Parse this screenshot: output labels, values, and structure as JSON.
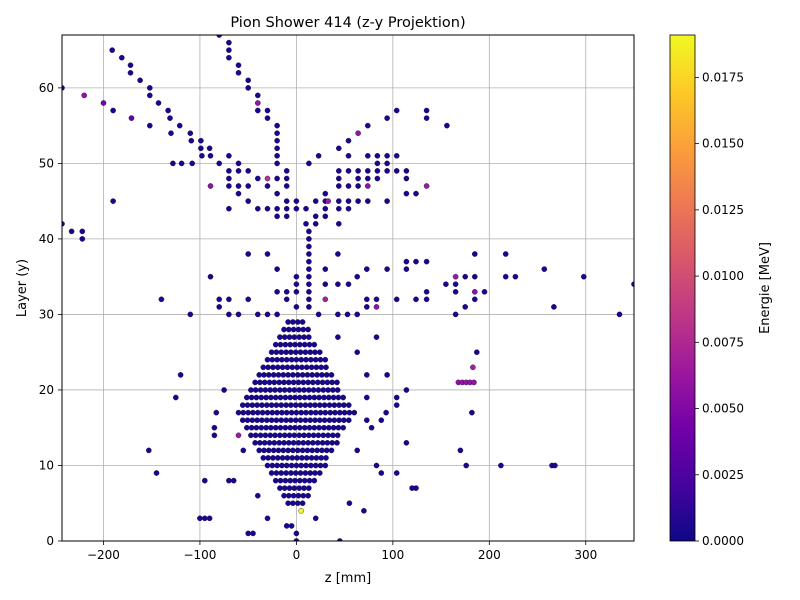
{
  "chart_data": {
    "type": "scatter",
    "title": "Pion Shower 414 (z-y Projektion)",
    "xlabel": "z [mm]",
    "ylabel": "Layer (y)",
    "xlim": [
      -243,
      350
    ],
    "ylim": [
      0,
      67
    ],
    "xticks": [
      -200,
      -100,
      0,
      100,
      200,
      300
    ],
    "yticks": [
      0,
      10,
      20,
      30,
      40,
      50,
      60
    ],
    "grid": true,
    "colorbar": {
      "label": "Energie [MeV]",
      "range": [
        0,
        0.0191
      ],
      "ticks": [
        "0.0000",
        "0.0025",
        "0.0050",
        "0.0075",
        "0.0100",
        "0.0125",
        "0.0150",
        "0.0175"
      ],
      "colormap": "plasma",
      "stops": [
        "#0d0887",
        "#46039f",
        "#7201a8",
        "#9c179e",
        "#bd3786",
        "#d8576b",
        "#ed7953",
        "#fb9f3a",
        "#fdca26",
        "#f0f921"
      ]
    },
    "points": [
      [
        -243,
        60,
        0.0005
      ],
      [
        -243,
        42,
        0.0004
      ],
      [
        -233,
        41,
        0.0004
      ],
      [
        -222,
        41,
        0.0004
      ],
      [
        -222,
        40,
        0.0004
      ],
      [
        -220,
        59,
        0.006
      ],
      [
        -200,
        58,
        0.0045
      ],
      [
        -191,
        65,
        0.0004
      ],
      [
        -190,
        57,
        0.0004
      ],
      [
        -190,
        45,
        0.0004
      ],
      [
        -181,
        64,
        0.0004
      ],
      [
        -172,
        63,
        0.0004
      ],
      [
        -172,
        62,
        0.0004
      ],
      [
        -171,
        56,
        0.0035
      ],
      [
        -162,
        61,
        0.0004
      ],
      [
        -152,
        60,
        0.0004
      ],
      [
        -152,
        59,
        0.0004
      ],
      [
        -152,
        55,
        0.0004
      ],
      [
        -143,
        58,
        0.0004
      ],
      [
        -140,
        32,
        0.0004
      ],
      [
        -133,
        57,
        0.0004
      ],
      [
        -131,
        56,
        0.0004
      ],
      [
        -130,
        54,
        0.0004
      ],
      [
        -128,
        50,
        0.0004
      ],
      [
        -121,
        55,
        0.0004
      ],
      [
        -119,
        50,
        0.0004
      ],
      [
        -110,
        54,
        0.0004
      ],
      [
        -109,
        53,
        0.0004
      ],
      [
        -108,
        50,
        0.0004
      ],
      [
        -99,
        53,
        0.0004
      ],
      [
        -99,
        52,
        0.0004
      ],
      [
        -98,
        51,
        0.0007
      ],
      [
        -90,
        52,
        0.0004
      ],
      [
        -89,
        51,
        0.0004
      ],
      [
        -89,
        47,
        0.0058
      ],
      [
        -89,
        35,
        0.0004
      ],
      [
        -80,
        50,
        0.0004
      ],
      [
        -80,
        67,
        0.0004
      ],
      [
        -70,
        49,
        0.0004
      ],
      [
        -70,
        48,
        0.0004
      ],
      [
        -70,
        47,
        0.0004
      ],
      [
        -70,
        44,
        0.0004
      ],
      [
        -70,
        51,
        0.0004
      ],
      [
        -60,
        49,
        0.0004
      ],
      [
        -60,
        47,
        0.0004
      ],
      [
        -60,
        46,
        0.0004
      ],
      [
        -60,
        50,
        0.0004
      ],
      [
        -50,
        49,
        0.0004
      ],
      [
        -50,
        47,
        0.0004
      ],
      [
        -50,
        45,
        0.0004
      ],
      [
        -40,
        48,
        0.0004
      ],
      [
        -40,
        44,
        0.0004
      ],
      [
        -30,
        48,
        0.0085
      ],
      [
        -30,
        47,
        0.0004
      ],
      [
        -20,
        48,
        0.0004
      ],
      [
        -20,
        46,
        0.0004
      ],
      [
        -20,
        44,
        0.0004
      ],
      [
        -20,
        43,
        0.0004
      ],
      [
        -30,
        44,
        0.0004
      ],
      [
        -70,
        66,
        0.0004
      ],
      [
        -70,
        65,
        0.0004
      ],
      [
        -70,
        64,
        0.0004
      ],
      [
        -60,
        63,
        0.0004
      ],
      [
        -60,
        62,
        0.0004
      ],
      [
        -50,
        61,
        0.0004
      ],
      [
        -50,
        60,
        0.0004
      ],
      [
        -40,
        59,
        0.0004
      ],
      [
        -40,
        58,
        0.006
      ],
      [
        -40,
        57,
        0.0004
      ],
      [
        -30,
        57,
        0.0004
      ],
      [
        -30,
        56,
        0.0004
      ],
      [
        -20,
        55,
        0.0004
      ],
      [
        -20,
        54,
        0.0004
      ],
      [
        -20,
        53,
        0.0004
      ],
      [
        -20,
        52,
        0.0004
      ],
      [
        -20,
        51,
        0.0004
      ],
      [
        -20,
        50,
        0.0004
      ],
      [
        -10,
        49,
        0.0004
      ],
      [
        -10,
        48,
        0.0004
      ],
      [
        -10,
        47,
        0.0004
      ],
      [
        -10,
        45,
        0.0004
      ],
      [
        -10,
        44,
        0.0004
      ],
      [
        -10,
        43,
        0.0004
      ],
      [
        0,
        45,
        0.0004
      ],
      [
        0,
        44,
        0.0004
      ],
      [
        10,
        44,
        0.0004
      ],
      [
        10,
        42,
        0.0004
      ],
      [
        20,
        45,
        0.0004
      ],
      [
        20,
        43,
        0.0004
      ],
      [
        20,
        42,
        0.0004
      ],
      [
        30,
        45,
        0.0004
      ],
      [
        30,
        44,
        0.0004
      ],
      [
        30,
        43,
        0.0004
      ],
      [
        30,
        46,
        0.0004
      ],
      [
        33,
        45,
        0.0065
      ],
      [
        13,
        50,
        0.0004
      ],
      [
        23,
        51,
        0.0004
      ],
      [
        44,
        49,
        0.0004
      ],
      [
        44,
        48,
        0.0004
      ],
      [
        44,
        47,
        0.0004
      ],
      [
        44,
        45,
        0.0004
      ],
      [
        44,
        44,
        0.0004
      ],
      [
        44,
        42,
        0.0004
      ],
      [
        44,
        52,
        0.0004
      ],
      [
        54,
        53,
        0.0004
      ],
      [
        54,
        51,
        0.0004
      ],
      [
        54,
        49,
        0.0004
      ],
      [
        54,
        47,
        0.0004
      ],
      [
        54,
        45,
        0.0004
      ],
      [
        54,
        44,
        0.0004
      ],
      [
        64,
        54,
        0.006
      ],
      [
        64,
        49,
        0.0004
      ],
      [
        64,
        48,
        0.0004
      ],
      [
        64,
        47,
        0.0004
      ],
      [
        64,
        45,
        0.0004
      ],
      [
        74,
        55,
        0.0004
      ],
      [
        74,
        51,
        0.0004
      ],
      [
        74,
        49,
        0.0004
      ],
      [
        74,
        48,
        0.0004
      ],
      [
        74,
        47,
        0.006
      ],
      [
        74,
        45,
        0.0004
      ],
      [
        84,
        51,
        0.0004
      ],
      [
        84,
        50,
        0.0004
      ],
      [
        84,
        49,
        0.0004
      ],
      [
        84,
        48,
        0.0004
      ],
      [
        94,
        56,
        0.0004
      ],
      [
        94,
        51,
        0.0004
      ],
      [
        94,
        50,
        0.0004
      ],
      [
        94,
        49,
        0.0004
      ],
      [
        94,
        45,
        0.0004
      ],
      [
        104,
        57,
        0.0004
      ],
      [
        104,
        51,
        0.0004
      ],
      [
        104,
        49,
        0.0004
      ],
      [
        114,
        49,
        0.0004
      ],
      [
        114,
        48,
        0.0004
      ],
      [
        114,
        46,
        0.0004
      ],
      [
        124,
        46,
        0.0004
      ],
      [
        135,
        57,
        0.0004
      ],
      [
        135,
        56,
        0.0004
      ],
      [
        135,
        47,
        0.0065
      ],
      [
        156,
        55,
        0.0004
      ],
      [
        -30,
        38,
        0.0004
      ],
      [
        -50,
        38,
        0.0004
      ],
      [
        -20,
        36,
        0.0004
      ],
      [
        0,
        35,
        0.0004
      ],
      [
        0,
        34,
        0.0004
      ],
      [
        0,
        33,
        0.0004
      ],
      [
        0,
        31,
        0.0004
      ],
      [
        13,
        41,
        0.0004
      ],
      [
        13,
        40,
        0.0004
      ],
      [
        13,
        39,
        0.0004
      ],
      [
        13,
        38,
        0.0004
      ],
      [
        13,
        37,
        0.0004
      ],
      [
        13,
        36,
        0.0004
      ],
      [
        13,
        35,
        0.0004
      ],
      [
        13,
        34,
        0.0004
      ],
      [
        13,
        33,
        0.0004
      ],
      [
        13,
        32,
        0.0004
      ],
      [
        13,
        31,
        0.0004
      ],
      [
        -20,
        33,
        0.0004
      ],
      [
        -10,
        32,
        0.0004
      ],
      [
        -10,
        33,
        0.0004
      ],
      [
        30,
        36,
        0.0004
      ],
      [
        30,
        34,
        0.0004
      ],
      [
        30,
        32,
        0.007
      ],
      [
        23,
        30,
        0.0004
      ],
      [
        43,
        38,
        0.0004
      ],
      [
        43,
        34,
        0.0004
      ],
      [
        54,
        34,
        0.0004
      ],
      [
        63,
        35,
        0.0004
      ],
      [
        73,
        36,
        0.0004
      ],
      [
        73,
        32,
        0.0004
      ],
      [
        73,
        31,
        0.0004
      ],
      [
        83,
        32,
        0.0004
      ],
      [
        83,
        31,
        0.006
      ],
      [
        94,
        36,
        0.0004
      ],
      [
        104,
        32,
        0.0004
      ],
      [
        114,
        37,
        0.0004
      ],
      [
        114,
        36,
        0.0004
      ],
      [
        124,
        37,
        0.0004
      ],
      [
        124,
        32,
        0.0004
      ],
      [
        135,
        37,
        0.0004
      ],
      [
        135,
        33,
        0.0004
      ],
      [
        135,
        32,
        0.0004
      ],
      [
        155,
        34,
        0.0004
      ],
      [
        165,
        35,
        0.0065
      ],
      [
        165,
        34,
        0.0004
      ],
      [
        165,
        33,
        0.0004
      ],
      [
        165,
        30,
        0.0004
      ],
      [
        175,
        35,
        0.0004
      ],
      [
        175,
        31,
        0.0004
      ],
      [
        185,
        38,
        0.0004
      ],
      [
        185,
        35,
        0.0004
      ],
      [
        185,
        33,
        0.006
      ],
      [
        185,
        32,
        0.0004
      ],
      [
        195,
        33,
        0.0004
      ],
      [
        217,
        38,
        0.0004
      ],
      [
        217,
        35,
        0.0004
      ],
      [
        227,
        35,
        0.0004
      ],
      [
        257,
        36,
        0.0004
      ],
      [
        267,
        31,
        0.0004
      ],
      [
        298,
        35,
        0.0004
      ],
      [
        335,
        30,
        0.0004
      ],
      [
        350,
        34,
        0.0004
      ],
      [
        -80,
        32,
        0.0004
      ],
      [
        -80,
        31,
        0.0004
      ],
      [
        -70,
        32,
        0.0004
      ],
      [
        -70,
        30,
        0.0004
      ],
      [
        -60,
        30,
        0.0004
      ],
      [
        -50,
        32,
        0.0004
      ],
      [
        -40,
        30,
        0.0004
      ],
      [
        -30,
        30,
        0.0004
      ],
      [
        -20,
        30,
        0.0004
      ],
      [
        -110,
        30,
        0.0004
      ],
      [
        43,
        30,
        0.0004
      ],
      [
        53,
        30,
        0.0004
      ],
      [
        63,
        30,
        0.0004
      ],
      [
        43,
        27,
        0.0004
      ],
      [
        63,
        25,
        0.0004
      ],
      [
        83,
        27,
        0.0004
      ],
      [
        94,
        22,
        0.0004
      ],
      [
        104,
        19,
        0.0004
      ],
      [
        104,
        18,
        0.0004
      ],
      [
        114,
        20,
        0.0004
      ],
      [
        114,
        13,
        0.0004
      ],
      [
        104,
        9,
        0.0004
      ],
      [
        124,
        7,
        0.0004
      ],
      [
        120,
        7,
        0.0004
      ],
      [
        -120,
        22,
        0.0004
      ],
      [
        -125,
        19,
        0.0004
      ],
      [
        -145,
        9,
        0.0004
      ],
      [
        -153,
        12,
        0.0004
      ],
      [
        -100,
        3,
        0.0004
      ],
      [
        -95,
        3,
        0.0004
      ],
      [
        -90,
        3,
        0.0004
      ],
      [
        -95,
        8,
        0.0004
      ],
      [
        -85,
        15,
        0.0004
      ],
      [
        -85,
        14,
        0.0004
      ],
      [
        -83,
        17,
        0.0004
      ],
      [
        -75,
        20,
        0.0004
      ],
      [
        -70,
        8,
        0.0004
      ],
      [
        -65,
        8,
        0.0004
      ],
      [
        -60,
        14,
        0.0065
      ],
      [
        -55,
        12,
        0.0004
      ],
      [
        -50,
        1,
        0.0004
      ],
      [
        -45,
        1,
        0.0004
      ],
      [
        -40,
        6,
        0.0004
      ],
      [
        -30,
        3,
        0.0004
      ],
      [
        -10,
        2,
        0.0004
      ],
      [
        -5,
        2,
        0.0004
      ],
      [
        0,
        1,
        0.0004
      ],
      [
        0,
        0,
        0.0004
      ],
      [
        5,
        4,
        0.0191
      ],
      [
        20,
        3,
        0.0004
      ],
      [
        45,
        0,
        0.0004
      ],
      [
        55,
        5,
        0.0004
      ],
      [
        70,
        4,
        0.0004
      ],
      [
        63,
        12,
        0.0004
      ],
      [
        73,
        16,
        0.0004
      ],
      [
        78,
        15,
        0.0004
      ],
      [
        83,
        10,
        0.0004
      ],
      [
        88,
        9,
        0.0004
      ],
      [
        88,
        16,
        0.0004
      ],
      [
        93,
        17,
        0.0004
      ],
      [
        73,
        22,
        0.0004
      ],
      [
        73,
        19,
        0.0004
      ],
      [
        168,
        21,
        0.006
      ],
      [
        172,
        21,
        0.006
      ],
      [
        176,
        21,
        0.006
      ],
      [
        180,
        21,
        0.006
      ],
      [
        184,
        21,
        0.006
      ],
      [
        183,
        23,
        0.007
      ],
      [
        187,
        25,
        0.0004
      ],
      [
        170,
        12,
        0.0004
      ],
      [
        176,
        10,
        0.0004
      ],
      [
        182,
        17,
        0.0004
      ],
      [
        212,
        10,
        0.0004
      ],
      [
        265,
        10,
        0.0004
      ],
      [
        268,
        10,
        0.0004
      ]
    ],
    "core": {
      "z_range": [
        -60,
        60
      ],
      "y_range": [
        5,
        29
      ],
      "spacing": 5
    }
  }
}
